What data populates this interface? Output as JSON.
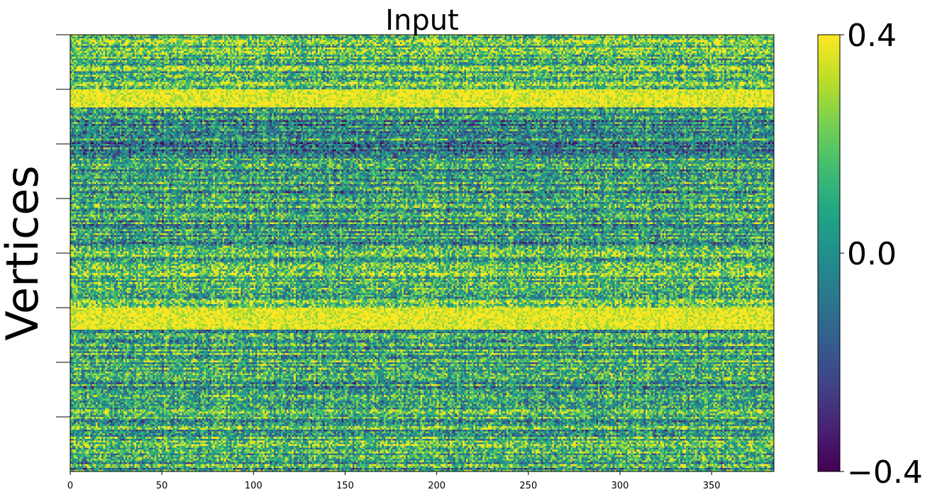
{
  "chart_data": {
    "type": "heatmap",
    "title": "Input",
    "ylabel": "Vertices",
    "xlabel": "",
    "xlim": [
      0,
      384
    ],
    "x_ticks": [
      "0",
      "50",
      "100",
      "150",
      "200",
      "250",
      "300",
      "350"
    ],
    "x_tick_values": [
      0,
      50,
      100,
      150,
      200,
      250,
      300,
      350
    ],
    "y_ticks_labeled": false,
    "y_tick_count": 8,
    "colormap": "viridis",
    "colorbar": {
      "min": -0.4,
      "max": 0.4,
      "ticks": [
        "0.4",
        "0.0",
        "−0.4"
      ],
      "tick_values": [
        0.4,
        0.0,
        -0.4
      ]
    },
    "rows": 240,
    "cols": 384,
    "row_bands": [
      {
        "rows": [
          0,
          30
        ],
        "mean": 0.15,
        "description": "mixed mostly positive"
      },
      {
        "rows": [
          30,
          40
        ],
        "mean": 0.4,
        "description": "saturated high"
      },
      {
        "rows": [
          40,
          66
        ],
        "mean": 0.0,
        "description": "mixed with low stripes"
      },
      {
        "rows": [
          66,
          120
        ],
        "mean": 0.05,
        "description": "mixed near zero"
      },
      {
        "rows": [
          120,
          150
        ],
        "mean": 0.15,
        "description": "mixed mostly positive"
      },
      {
        "rows": [
          150,
          162
        ],
        "mean": 0.4,
        "description": "saturated high"
      },
      {
        "rows": [
          162,
          240
        ],
        "mean": 0.08,
        "description": "mixed near zero"
      }
    ]
  }
}
